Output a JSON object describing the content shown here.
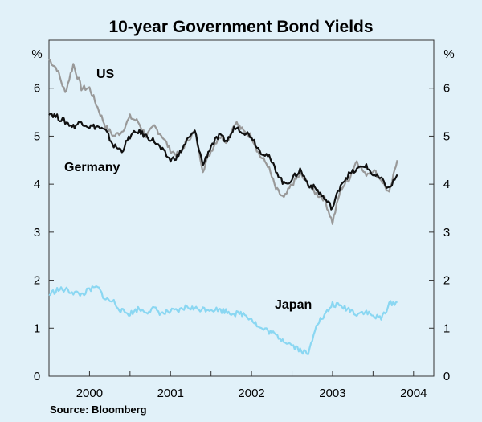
{
  "chart_data": {
    "type": "line",
    "title": "10-year Government Bond Yields",
    "ylabel_left": "%",
    "ylabel_right": "%",
    "ylim": [
      0,
      7
    ],
    "xlim": [
      1999.5,
      2004.25
    ],
    "yticks": [
      "0",
      "1",
      "2",
      "3",
      "4",
      "5",
      "6"
    ],
    "xticks": [
      {
        "label": "2000",
        "at": 2000.0
      },
      {
        "label": "2001",
        "at": 2001.0
      },
      {
        "label": "2002",
        "at": 2002.0
      },
      {
        "label": "2003",
        "at": 2003.0
      },
      {
        "label": "2004",
        "at": 2004.0
      }
    ],
    "x": [
      1999.5,
      1999.6,
      1999.7,
      1999.8,
      1999.9,
      2000.0,
      2000.1,
      2000.2,
      2000.3,
      2000.4,
      2000.5,
      2000.6,
      2000.7,
      2000.8,
      2000.9,
      2001.0,
      2001.1,
      2001.2,
      2001.3,
      2001.4,
      2001.5,
      2001.6,
      2001.7,
      2001.8,
      2001.9,
      2002.0,
      2002.1,
      2002.2,
      2002.3,
      2002.4,
      2002.5,
      2002.6,
      2002.7,
      2002.8,
      2002.9,
      2003.0,
      2003.1,
      2003.2,
      2003.3,
      2003.4,
      2003.5,
      2003.6,
      2003.7,
      2003.8
    ],
    "series": [
      {
        "name": "US",
        "color": "#999999",
        "values": [
          6.6,
          6.4,
          5.9,
          6.5,
          6.0,
          6.0,
          5.6,
          5.2,
          5.0,
          5.1,
          5.4,
          5.3,
          5.0,
          5.2,
          5.0,
          4.7,
          4.6,
          4.9,
          5.1,
          4.3,
          4.7,
          5.0,
          4.9,
          5.3,
          5.1,
          5.0,
          4.6,
          4.4,
          3.9,
          3.7,
          4.0,
          4.2,
          4.0,
          3.8,
          3.7,
          3.2,
          3.9,
          4.1,
          4.5,
          4.2,
          4.3,
          4.1,
          3.8,
          4.5
        ]
      },
      {
        "name": "Germany",
        "color": "#111111",
        "values": [
          5.5,
          5.4,
          5.3,
          5.2,
          5.3,
          5.2,
          5.2,
          5.1,
          4.8,
          4.7,
          5.0,
          5.1,
          5.0,
          4.9,
          4.7,
          4.5,
          4.6,
          4.9,
          5.1,
          4.4,
          4.8,
          5.0,
          4.9,
          5.2,
          5.1,
          5.0,
          4.7,
          4.6,
          4.3,
          4.0,
          4.1,
          4.3,
          4.0,
          3.9,
          3.7,
          3.5,
          4.0,
          4.2,
          4.3,
          4.4,
          4.2,
          4.1,
          3.9,
          4.2
        ]
      },
      {
        "name": "Japan",
        "color": "#8ad7f2",
        "values": [
          1.7,
          1.8,
          1.8,
          1.75,
          1.7,
          1.8,
          1.85,
          1.6,
          1.55,
          1.35,
          1.3,
          1.4,
          1.35,
          1.4,
          1.3,
          1.35,
          1.35,
          1.45,
          1.4,
          1.4,
          1.4,
          1.38,
          1.35,
          1.3,
          1.3,
          1.2,
          1.0,
          0.95,
          0.85,
          0.75,
          0.65,
          0.55,
          0.45,
          1.1,
          1.25,
          1.5,
          1.45,
          1.4,
          1.3,
          1.35,
          1.25,
          1.2,
          1.5,
          1.55
        ]
      }
    ],
    "annotations": [
      {
        "text": "US",
        "series": "US"
      },
      {
        "text": "Germany",
        "series": "Germany"
      },
      {
        "text": "Japan",
        "series": "Japan"
      }
    ],
    "source": "Source: Bloomberg"
  }
}
